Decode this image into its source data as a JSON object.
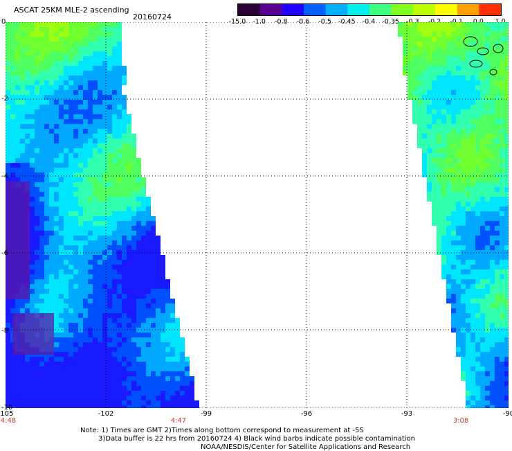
{
  "header": {
    "title": "ASCAT 25KM MLE-2 ascending",
    "date": "20160724"
  },
  "colorbar": {
    "labels": [
      "-15.0",
      "-1.0",
      "-0.8",
      "-0.6",
      "-0.5",
      "-0.45",
      "-0.4",
      "-0.35",
      "-0.3",
      "-0.2",
      "-0.1",
      "0.0",
      "1.0"
    ],
    "colors": [
      "#2a0034",
      "#5a0090",
      "#2000ff",
      "#0060ff",
      "#00b0ff",
      "#00f0f0",
      "#40ff80",
      "#80ff20",
      "#c0ff00",
      "#ffff00",
      "#ffa000",
      "#ff3000"
    ]
  },
  "map": {
    "lat_ticks": [
      "0",
      "-2",
      "-4",
      "-6",
      "-8",
      "-10"
    ],
    "lon_ticks": [
      "-105",
      "-102",
      "-99",
      "-96",
      "-93",
      "-90"
    ],
    "time_labels": {
      "left": "4:48",
      "mid": "4:47",
      "right": "3:08"
    }
  },
  "footer": {
    "line1": "Note: 1) Times are GMT 2)Times along bottom correspond to measurement at -5S",
    "line2": "3)Data buffer is 22 hrs from 20160724 4) Black wind barbs indicate possible contamination",
    "line3": "NOAA/NESDIS/Center for Satellite Applications and Research"
  }
}
